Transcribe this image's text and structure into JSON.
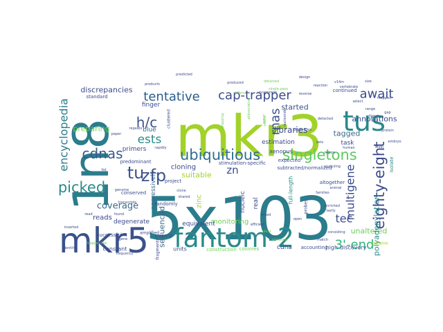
{
  "word_cloud": {
    "words": [
      {
        "text": "5x103",
        "color": "#2b7c8c"
      },
      {
        "text": "mkr3",
        "color": "#a2d22a"
      },
      {
        "text": "1n8",
        "color": "#2b7c8c"
      },
      {
        "text": "fantom-2",
        "color": "#2a8a8a"
      },
      {
        "text": "mkr5",
        "color": "#3b528b"
      },
      {
        "text": "tus",
        "color": "#2a8a8a"
      },
      {
        "text": "ubiquitious",
        "color": "#2f6e8e"
      },
      {
        "text": "singletons",
        "color": "#5ec962"
      },
      {
        "text": "tentative",
        "color": "#2a5d8a"
      },
      {
        "text": "cap-trapper",
        "color": "#3a4a8c"
      },
      {
        "text": "picked",
        "color": "#2a8a8a"
      },
      {
        "text": "eighty-eight",
        "color": "#3b4a8c"
      },
      {
        "text": "encyclopedia",
        "color": "#2b7c8c"
      },
      {
        "text": "zfp",
        "color": "#3b528b"
      },
      {
        "text": "h/c",
        "color": "#3b528b"
      },
      {
        "text": "cdnas",
        "color": "#3a5a8c"
      },
      {
        "text": "tu",
        "color": "#3b528b"
      },
      {
        "text": "await",
        "color": "#3a4a8c"
      },
      {
        "text": "multigene",
        "color": "#3a4a8c"
      },
      {
        "text": "3'-end",
        "color": "#2db27d"
      },
      {
        "text": "rnas",
        "color": "#3b528b"
      },
      {
        "text": "ests",
        "color": "#2a8a8a"
      },
      {
        "text": "tec",
        "color": "#3b4a8c"
      },
      {
        "text": "coverage",
        "color": "#3a6a8c"
      },
      {
        "text": "zn",
        "color": "#3a4a8c"
      },
      {
        "text": "discrepancies",
        "color": "#3e4a89"
      },
      {
        "text": "preparing",
        "color": "#6ece58"
      },
      {
        "text": "libraries",
        "color": "#3b4a8c"
      },
      {
        "text": "started",
        "color": "#3b528b"
      },
      {
        "text": "tagged",
        "color": "#3a6a8c"
      },
      {
        "text": "annotations",
        "color": "#3b4a8c"
      },
      {
        "text": "unaltered",
        "color": "#6ece58"
      },
      {
        "text": "polyadenylation",
        "color": "#2a8a8a"
      },
      {
        "text": "reads",
        "color": "#3b4a8c"
      },
      {
        "text": "cloning",
        "color": "#3b4a8c"
      },
      {
        "text": "suitable",
        "color": "#a2d22a"
      },
      {
        "text": "sequenced",
        "color": "#3a6a8c"
      },
      {
        "text": "aggressively",
        "color": "#3a6a8c"
      },
      {
        "text": "degenerate",
        "color": "#3b4a8c"
      },
      {
        "text": "primers",
        "color": "#3b4a8c"
      },
      {
        "text": "finger",
        "color": "#3b4a8c"
      },
      {
        "text": "blue",
        "color": "#3a6a8c"
      },
      {
        "text": "task",
        "color": "#3b4a8c"
      },
      {
        "text": "estimation",
        "color": "#3b4a8c"
      },
      {
        "text": "nucleic",
        "color": "#3a4a8c"
      },
      {
        "text": "real",
        "color": "#3b4a8c"
      },
      {
        "text": "monitoring",
        "color": "#6ece58"
      },
      {
        "text": "equivalent",
        "color": "#3b4a8c"
      },
      {
        "text": "zinc",
        "color": "#a2d22a"
      },
      {
        "text": "cdna",
        "color": "#3b4a8c"
      },
      {
        "text": "high-discovery",
        "color": "#3b528b"
      },
      {
        "text": "units",
        "color": "#3b4a8c"
      },
      {
        "text": "constant",
        "color": "#3b4a8c"
      },
      {
        "text": "standard",
        "color": "#3b4a8c"
      },
      {
        "text": "continued",
        "color": "#3b4a8c"
      },
      {
        "text": "full-length",
        "color": "#2a8a8a"
      },
      {
        "text": "altogether",
        "color": "#3b4a8c"
      },
      {
        "text": "xenopus",
        "color": "#3b4a8c"
      },
      {
        "text": "expected",
        "color": "#3b4a8c"
      },
      {
        "text": "subtracted/normalized",
        "color": "#3b4a8c"
      },
      {
        "text": "stimulation-specific",
        "color": "#3b4a8c"
      },
      {
        "text": "project",
        "color": "#3b4a8c"
      },
      {
        "text": "predominant",
        "color": "#3b4a8c"
      },
      {
        "text": "conserved",
        "color": "#3b4a8c"
      },
      {
        "text": "successful",
        "color": "#3b4a8c"
      },
      {
        "text": "randomly",
        "color": "#3b4a8c"
      },
      {
        "text": "accounting",
        "color": "#3b4a8c"
      },
      {
        "text": "colonies",
        "color": "#6ece58"
      },
      {
        "text": "construction",
        "color": "#6ece58"
      },
      {
        "text": "fragments",
        "color": "#3b4a8c"
      },
      {
        "text": "amplified",
        "color": "#3b4a8c"
      },
      {
        "text": "properly",
        "color": "#3b4a8c"
      },
      {
        "text": "clustered",
        "color": "#3b4a8c"
      },
      {
        "text": "probes",
        "color": "#3b4a8c"
      },
      {
        "text": "isolate",
        "color": "#2a8a8a"
      },
      {
        "text": "explains",
        "color": "#a2d22a"
      },
      {
        "text": "analyzing",
        "color": "#3b4a8c"
      },
      {
        "text": "paper",
        "color": "#3b4a8c"
      },
      {
        "text": "repeats",
        "color": "#3b4a8c"
      },
      {
        "text": "rapidly",
        "color": "#3b4a8c"
      },
      {
        "text": "produced",
        "color": "#3b4a8c"
      },
      {
        "text": "predicted",
        "color": "#3b4a8c"
      },
      {
        "text": "products",
        "color": "#3b4a8c"
      },
      {
        "text": "organisms",
        "color": "#3b4a8c"
      },
      {
        "text": "enriched",
        "color": "#3b4a8c"
      },
      {
        "text": "families",
        "color": "#3b4a8c"
      },
      {
        "text": "reaction",
        "color": "#3b4a8c"
      },
      {
        "text": "v14m",
        "color": "#3b4a8c"
      },
      {
        "text": "tissue",
        "color": "#3b4a8c"
      },
      {
        "text": "embryo",
        "color": "#3b4a8c"
      },
      {
        "text": "frequency",
        "color": "#3b4a8c"
      },
      {
        "text": "identity",
        "color": "#3b4a8c"
      },
      {
        "text": "dropping",
        "color": "#6ece58"
      },
      {
        "text": "linked",
        "color": "#3b4a8c"
      },
      {
        "text": "efficient",
        "color": "#3b4a8c"
      },
      {
        "text": "animal",
        "color": "#3b4a8c"
      },
      {
        "text": "genome",
        "color": "#3b4a8c"
      },
      {
        "text": "useful",
        "color": "#6ece58"
      },
      {
        "text": "lastly",
        "color": "#3b4a8c"
      },
      {
        "text": "inserted",
        "color": "#3b4a8c"
      },
      {
        "text": "transcripts",
        "color": "#3b4a8c"
      },
      {
        "text": "clone",
        "color": "#3b4a8c"
      },
      {
        "text": "shared",
        "color": "#3b4a8c"
      },
      {
        "text": "detected",
        "color": "#3b4a8c"
      },
      {
        "text": "consisting",
        "color": "#3b4a8c"
      },
      {
        "text": "sets",
        "color": "#3b4a8c"
      },
      {
        "text": "select",
        "color": "#3b4a8c"
      },
      {
        "text": "range",
        "color": "#3b4a8c"
      },
      {
        "text": "removed",
        "color": "#6ece58"
      },
      {
        "text": "trapper-like",
        "color": "#6ece58"
      },
      {
        "text": "gene",
        "color": "#3b4a8c"
      },
      {
        "text": "occur",
        "color": "#6ece58"
      },
      {
        "text": "abbreviation",
        "color": "#6ece58"
      },
      {
        "text": "mapped",
        "color": "#3b4a8c"
      },
      {
        "text": "obtained",
        "color": "#6ece58"
      },
      {
        "text": "nucleotide",
        "color": "#3b4a8c"
      },
      {
        "text": "reverse",
        "color": "#3b4a8c"
      },
      {
        "text": "gap",
        "color": "#3b4a8c"
      },
      {
        "text": "found",
        "color": "#3b4a8c"
      },
      {
        "text": "level",
        "color": "#3b4a8c"
      },
      {
        "text": "design",
        "color": "#3b4a8c"
      },
      {
        "text": "read",
        "color": "#3b4a8c"
      },
      {
        "text": "differs",
        "color": "#6ece58"
      },
      {
        "text": "protein",
        "color": "#3b4a8c"
      },
      {
        "text": "list",
        "color": "#3b4a8c"
      },
      {
        "text": "human",
        "color": "#3b4a8c"
      },
      {
        "text": "region",
        "color": "#3b4a8c"
      },
      {
        "text": "vertebrate",
        "color": "#3b4a8c"
      },
      {
        "text": "ideal",
        "color": "#6ece58"
      },
      {
        "text": "size",
        "color": "#3b4a8c"
      },
      {
        "text": "open",
        "color": "#3b4a8c"
      },
      {
        "text": "uncommon",
        "color": "#3b4a8c"
      },
      {
        "text": "single-pass",
        "color": "#6ece58"
      },
      {
        "text": "match",
        "color": "#3b4a8c"
      }
    ]
  }
}
